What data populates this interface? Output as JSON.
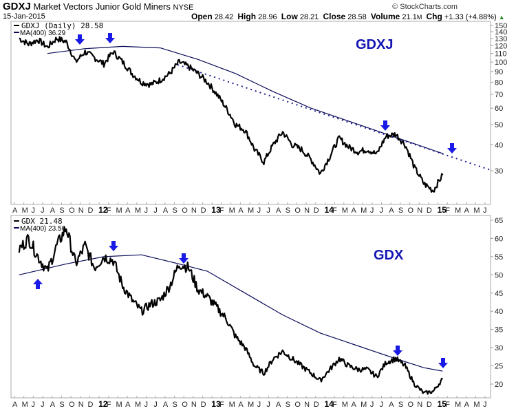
{
  "header": {
    "symbol": "GDXJ",
    "name": "Market Vectors Junior Gold Miners",
    "exchange": "NYSE",
    "date": "15-Jan-2015",
    "copyright": "© StockCharts.com",
    "open_label": "Open",
    "open": "28.42",
    "high_label": "High",
    "high": "28.96",
    "low_label": "Low",
    "low": "28.21",
    "close_label": "Close",
    "close": "28.58",
    "volume_label": "Volume",
    "volume": "21.1",
    "volume_unit": "M",
    "chg_label": "Chg",
    "chg": "+1.33 (+4.88%)",
    "chg_icon": "up-triangle-icon"
  },
  "top_panel": {
    "legend_price": "GDXJ (Daily) 28.58",
    "legend_ma": "MA(400) 36.29",
    "watermark": "GDXJ",
    "y_ticks": [
      "150",
      "140",
      "130",
      "120",
      "110",
      "100",
      "90",
      "80",
      "70",
      "60",
      "50",
      "40",
      "30"
    ]
  },
  "bottom_panel": {
    "legend_price": "GDX 21.48",
    "legend_ma": "MA(400) 23.56",
    "watermark": "GDX",
    "y_ticks": [
      "65",
      "60",
      "55",
      "50",
      "45",
      "40",
      "35",
      "30",
      "25",
      "20"
    ]
  },
  "x_axis": {
    "labels": [
      "A",
      "M",
      "J",
      "J",
      "A",
      "S",
      "O",
      "N",
      "D",
      "12",
      "F",
      "M",
      "A",
      "M",
      "J",
      "J",
      "A",
      "S",
      "O",
      "N",
      "D",
      "13",
      "F",
      "M",
      "A",
      "M",
      "J",
      "J",
      "A",
      "S",
      "O",
      "N",
      "D",
      "14",
      "F",
      "M",
      "A",
      "M",
      "J",
      "J",
      "A",
      "S",
      "O",
      "N",
      "D",
      "15",
      "F",
      "M",
      "A",
      "M",
      "J"
    ]
  },
  "colors": {
    "price_line": "#000000",
    "ma_line": "#0a0a5a",
    "trendline": "#1c1c8c",
    "arrow": "#1a1ae6",
    "watermark": "#1414b4",
    "grid_border": "#a0a0a0"
  },
  "chart_data": [
    {
      "type": "line",
      "title": "GDXJ Market Vectors Junior Gold Miners (Daily)",
      "scale": "log",
      "ylim": [
        24,
        155
      ],
      "x_range": [
        "Apr 2011",
        "Jun 2015"
      ],
      "series": [
        {
          "name": "GDXJ (Daily)",
          "last": 28.58,
          "x": [
            "2011-04",
            "2011-05",
            "2011-06",
            "2011-07",
            "2011-08",
            "2011-09",
            "2011-10",
            "2011-11",
            "2011-12",
            "2012-01",
            "2012-02",
            "2012-03",
            "2012-04",
            "2012-05",
            "2012-06",
            "2012-07",
            "2012-08",
            "2012-09",
            "2012-10",
            "2012-11",
            "2012-12",
            "2013-01",
            "2013-02",
            "2013-03",
            "2013-04",
            "2013-05",
            "2013-06",
            "2013-07",
            "2013-08",
            "2013-09",
            "2013-10",
            "2013-11",
            "2013-12",
            "2014-01",
            "2014-02",
            "2014-03",
            "2014-04",
            "2014-05",
            "2014-06",
            "2014-07",
            "2014-08",
            "2014-09",
            "2014-10",
            "2014-11",
            "2014-12",
            "2015-01"
          ],
          "values": [
            130,
            122,
            128,
            118,
            130,
            125,
            100,
            112,
            105,
            98,
            112,
            100,
            88,
            80,
            78,
            82,
            88,
            100,
            95,
            88,
            80,
            70,
            60,
            50,
            47,
            38,
            33,
            40,
            46,
            40,
            38,
            34,
            29,
            35,
            43,
            39,
            37,
            38,
            36,
            44,
            45,
            40,
            31,
            26,
            24,
            28.58
          ]
        },
        {
          "name": "MA(400)",
          "last": 36.29,
          "x": [
            "2011-07",
            "2011-11",
            "2012-03",
            "2012-07",
            "2012-11",
            "2013-03",
            "2013-07",
            "2013-11",
            "2014-03",
            "2014-07",
            "2014-11",
            "2015-01"
          ],
          "values": [
            110,
            116,
            119,
            117,
            103,
            88,
            72,
            60,
            52,
            45,
            39,
            36.29
          ]
        },
        {
          "name": "Trendline (dotted)",
          "x": [
            "2012-09",
            "2015-06"
          ],
          "values": [
            99,
            30
          ]
        }
      ],
      "annotations": [
        "Down arrows at resistance: Nov 2011, Feb 2012, Aug 2014, Feb 2015"
      ],
      "xlabel": "",
      "ylabel": ""
    },
    {
      "type": "line",
      "title": "GDX",
      "scale": "linear",
      "ylim": [
        17,
        65
      ],
      "x_range": [
        "Apr 2011",
        "Jun 2015"
      ],
      "series": [
        {
          "name": "GDX",
          "last": 21.48,
          "x": [
            "2011-04",
            "2011-05",
            "2011-06",
            "2011-07",
            "2011-08",
            "2011-09",
            "2011-10",
            "2011-11",
            "2011-12",
            "2012-01",
            "2012-02",
            "2012-03",
            "2012-04",
            "2012-05",
            "2012-06",
            "2012-07",
            "2012-08",
            "2012-09",
            "2012-10",
            "2012-11",
            "2012-12",
            "2013-01",
            "2013-02",
            "2013-03",
            "2013-04",
            "2013-05",
            "2013-06",
            "2013-07",
            "2013-08",
            "2013-09",
            "2013-10",
            "2013-11",
            "2013-12",
            "2014-01",
            "2014-02",
            "2014-03",
            "2014-04",
            "2014-05",
            "2014-06",
            "2014-07",
            "2014-08",
            "2014-09",
            "2014-10",
            "2014-11",
            "2014-12",
            "2015-01"
          ],
          "values": [
            57,
            60,
            55,
            51,
            58,
            63,
            53,
            58,
            52,
            55,
            54,
            47,
            43,
            40,
            42,
            43,
            47,
            53,
            52,
            46,
            44,
            41,
            38,
            33,
            30,
            25,
            23,
            27,
            29,
            27,
            25,
            23,
            21,
            24,
            27,
            25,
            24,
            24,
            22,
            26,
            27,
            25,
            20,
            17.5,
            18,
            21.48
          ]
        },
        {
          "name": "MA(400)",
          "last": 23.56,
          "x": [
            "2011-04",
            "2011-09",
            "2012-01",
            "2012-05",
            "2012-09",
            "2012-12",
            "2013-04",
            "2013-08",
            "2013-12",
            "2014-04",
            "2014-08",
            "2014-11",
            "2015-01"
          ],
          "values": [
            50,
            53,
            55,
            55.5,
            53,
            51,
            45,
            39,
            34,
            30.5,
            27,
            24.5,
            23.56
          ]
        }
      ],
      "annotations": [
        "Up arrow at support: Jul 2011",
        "Down arrows at resistance: Mar 2012, Sep 2012, Aug 2014, Jan 2015"
      ],
      "xlabel": "",
      "ylabel": ""
    }
  ]
}
